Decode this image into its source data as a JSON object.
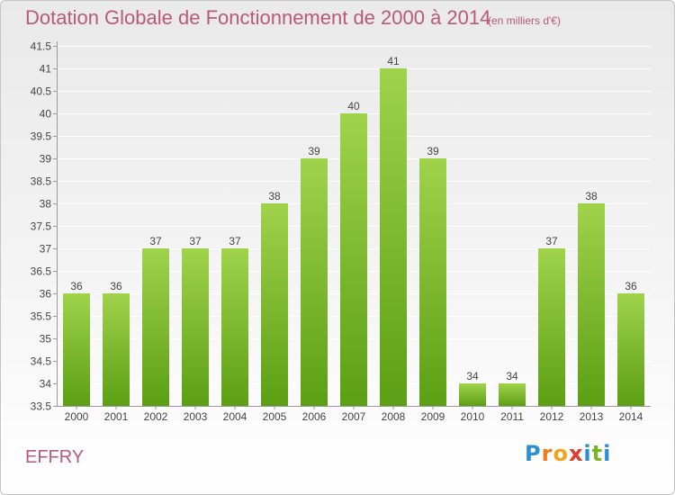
{
  "header": {
    "title": "Dotation Globale de Fonctionnement de 2000 à 2014",
    "subtitle": "(en milliers d'€)"
  },
  "footer": {
    "commune": "EFFRY",
    "brand": "Proxiti",
    "brand_letters": [
      "P",
      "r",
      "o",
      "x",
      "i",
      "t",
      "i"
    ],
    "brand_colors": [
      "#2b8fd6",
      "#ef7a1a",
      "#f2a51a",
      "#e33a2c",
      "#2b8fd6",
      "#79b52a",
      "#2b8fd6"
    ]
  },
  "colors": {
    "bar_top": "#9fd34b",
    "bar_bottom": "#5c9e15",
    "axis": "#9a9a9a",
    "grid": "#ffffff",
    "label_text": "#444444",
    "accent": "#b85a78"
  },
  "chart_data": {
    "type": "bar",
    "title": "Dotation Globale de Fonctionnement de 2000 à 2014",
    "categories": [
      "2000",
      "2001",
      "2002",
      "2003",
      "2004",
      "2005",
      "2006",
      "2007",
      "2008",
      "2009",
      "2010",
      "2011",
      "2012",
      "2013",
      "2014"
    ],
    "values": [
      36,
      36,
      37,
      37,
      37,
      38,
      39,
      40,
      41,
      39,
      34,
      34,
      37,
      38,
      36
    ],
    "ylim": [
      33.5,
      41.5
    ],
    "yticks": [
      33.5,
      34,
      34.5,
      35,
      35.5,
      36,
      36.5,
      37,
      37.5,
      38,
      38.5,
      39,
      39.5,
      40,
      40.5,
      41,
      41.5
    ],
    "ytick_labels": [
      "33.5",
      "34",
      "34.5",
      "35",
      "35.5",
      "36",
      "36.5",
      "37",
      "37.5",
      "38",
      "38.5",
      "39",
      "39.5",
      "40",
      "40.5",
      "41",
      "41.5"
    ],
    "grid": true,
    "data_labels": true
  }
}
